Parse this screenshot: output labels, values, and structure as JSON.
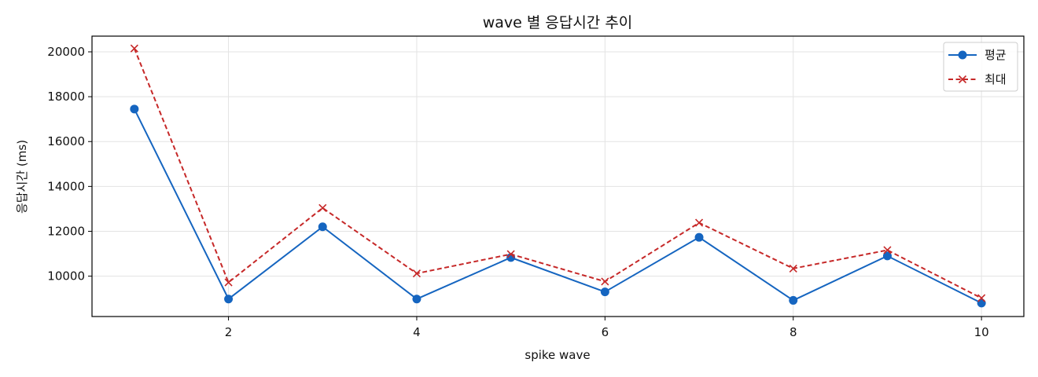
{
  "chart_data": {
    "type": "line",
    "title": "wave 별 응답시간 추이",
    "xlabel": "spike wave",
    "ylabel": "응답시간 (ms)",
    "x": [
      1,
      2,
      3,
      4,
      5,
      6,
      7,
      8,
      9,
      10
    ],
    "xlim": [
      0.55,
      10.45
    ],
    "ylim": [
      8200,
      20700
    ],
    "xticks": [
      2,
      4,
      6,
      8,
      10
    ],
    "yticks": [
      10000,
      12000,
      14000,
      16000,
      18000,
      20000
    ],
    "grid": true,
    "legend_position": "top-right",
    "series": [
      {
        "name": "평균",
        "values": [
          17450,
          8980,
          12200,
          8980,
          10830,
          9300,
          11730,
          8920,
          10900,
          8800
        ],
        "color": "#1565c0",
        "line_style": "solid",
        "marker": "circle"
      },
      {
        "name": "최대",
        "values": [
          20150,
          9720,
          13040,
          10120,
          10980,
          9760,
          12380,
          10340,
          11160,
          9020
        ],
        "color": "#c62828",
        "line_style": "dashed",
        "marker": "x"
      }
    ]
  }
}
